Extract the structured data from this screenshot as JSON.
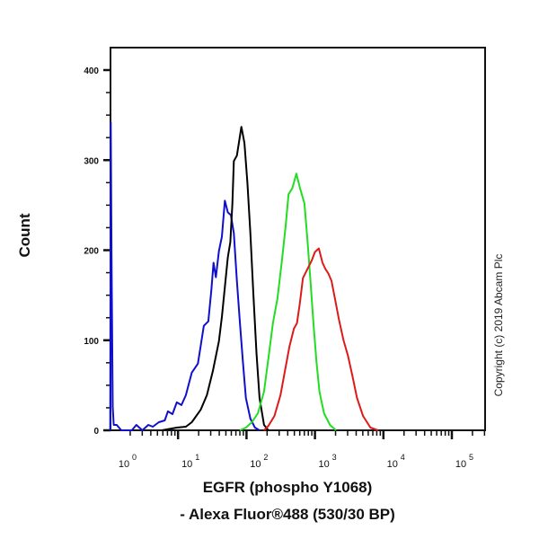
{
  "chart_data": {
    "type": "line",
    "title": "",
    "xlabel": "EGFR (phospho Y1068)",
    "xlabel_line2": "- Alexa Fluor®488 (530/30 BP)",
    "ylabel": "Count",
    "xscale": "log",
    "xlim": [
      1,
      290000
    ],
    "ylim": [
      0,
      420
    ],
    "grid": false,
    "yticks": [
      0,
      100,
      200,
      300,
      400
    ],
    "xticks": [
      {
        "base": "10",
        "exp": "0",
        "value": 1
      },
      {
        "base": "10",
        "exp": "1",
        "value": 10
      },
      {
        "base": "10",
        "exp": "2",
        "value": 100
      },
      {
        "base": "10",
        "exp": "3",
        "value": 1000
      },
      {
        "base": "10",
        "exp": "4",
        "value": 10000
      },
      {
        "base": "10",
        "exp": "5",
        "value": 100000
      }
    ],
    "annotation": "Copyright (c) 2019 Abcam Plc",
    "series": [
      {
        "color": "#1010cc",
        "x": [
          1.02,
          1.04,
          1.07,
          1.11,
          1.15,
          1.27,
          1.48,
          2.11,
          2.46,
          3.0,
          3.68,
          4.28,
          5.24,
          6.4,
          7.1,
          8.3,
          9.6,
          11.2,
          13,
          15.9,
          19.5,
          23.8,
          27.7,
          30.7,
          33,
          35.7,
          39.5,
          43.7,
          48.3,
          53.4,
          59.1,
          65.4,
          72.4,
          80.1,
          88.6,
          98,
          114,
          133,
          155
        ],
        "y": [
          0,
          342,
          186,
          26,
          6,
          6,
          0,
          0,
          6,
          0,
          6,
          4,
          9,
          11,
          21,
          18,
          31,
          28,
          39,
          64,
          74,
          116,
          121,
          156,
          186,
          170,
          199,
          215,
          255,
          242,
          239,
          219,
          166,
          119,
          76,
          36,
          13,
          3,
          0
        ]
      },
      {
        "color": "#000000",
        "x": [
          5.8,
          9.6,
          13,
          15.9,
          21.5,
          26.4,
          32.3,
          39.5,
          43.7,
          48.3,
          53.4,
          58,
          62.2,
          65.4,
          72.4,
          84.2,
          93.3,
          103,
          114,
          126,
          140,
          155,
          180,
          209
        ],
        "y": [
          0,
          3,
          4,
          9,
          23,
          39,
          66,
          99,
          126,
          159,
          192,
          209,
          252,
          299,
          305,
          337,
          319,
          275,
          219,
          152,
          86,
          36,
          6,
          0
        ]
      },
      {
        "color": "#22dd22",
        "x": [
          80,
          98,
          120,
          147,
          180,
          209,
          243,
          283,
          330,
          372,
          411,
          469,
          535,
          604,
          702,
          776,
          859,
          951,
          1052,
          1164,
          1355,
          1657,
          2027
        ],
        "y": [
          0,
          3,
          9,
          19,
          43,
          80,
          119,
          146,
          189,
          226,
          262,
          269,
          285,
          269,
          252,
          212,
          166,
          119,
          76,
          43,
          19,
          6,
          0
        ]
      },
      {
        "color": "#dd1a1a",
        "x": [
          180,
          209,
          256,
          313,
          364,
          424,
          493,
          546,
          604,
          668,
          776,
          903,
          1000,
          1140,
          1290,
          1425,
          1575,
          1742,
          1928,
          2244,
          2612,
          3034,
          3532,
          4111,
          5035,
          6477,
          8337
        ],
        "y": [
          0,
          5,
          16,
          39,
          66,
          93,
          113,
          119,
          142,
          169,
          179,
          189,
          198,
          202,
          186,
          179,
          174,
          166,
          149,
          123,
          100,
          83,
          60,
          36,
          16,
          3,
          0
        ]
      }
    ]
  }
}
